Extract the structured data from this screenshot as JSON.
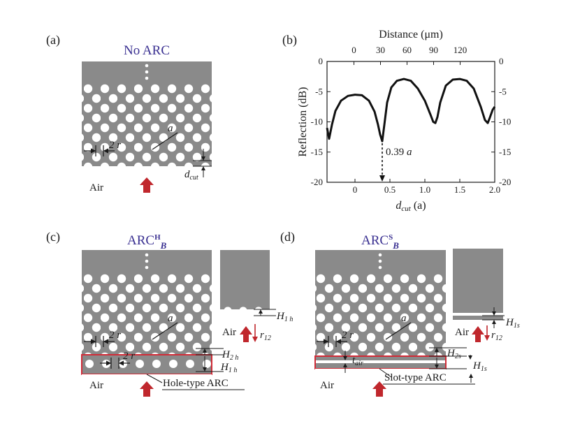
{
  "panels": {
    "a": {
      "label": "(a)",
      "title": "No ARC",
      "medium": "Air",
      "dim_r": "2 r",
      "dim_a": "a",
      "dim_dcut": "d",
      "dim_dcut_sub": "cut"
    },
    "b": {
      "label": "(b)"
    },
    "c": {
      "label": "(c)",
      "title_main": "ARC",
      "title_sup": "H",
      "title_sub": "B",
      "medium": "Air",
      "dim_r": "2 r",
      "dim_r2": "2 r",
      "dim_a": "a",
      "h2": "H",
      "h2_sub": "2 h",
      "h1": "H",
      "h1_sub": "1 h",
      "callout": "Hole-type ARC",
      "inset_medium": "Air",
      "inset_h": "H",
      "inset_h_sub": "1 h",
      "inset_r": "r",
      "inset_r_sub": "12"
    },
    "d": {
      "label": "(d)",
      "title_main": "ARC",
      "title_sup": "S",
      "title_sub": "B",
      "medium": "Air",
      "dim_r": "2 r",
      "dim_a": "a",
      "tair": "t",
      "tair_sub": "air",
      "h2": "H",
      "h2_sub": "2s",
      "h1": "H",
      "h1_sub": "1s",
      "callout": "Slot-type ARC",
      "inset_medium": "Air",
      "inset_h": "H",
      "inset_h_sub": "1s",
      "inset_r": "r",
      "inset_r_sub": "12"
    }
  },
  "colors": {
    "slab": "#8a8a8a",
    "hole": "#ffffff",
    "title": "#3a3091",
    "arrow": "#c0272d",
    "box": "#d12b37"
  },
  "chart_data": {
    "type": "line",
    "xlabel": "d",
    "xlabel_sub": "cut",
    "xlabel_unit": "(a)",
    "ylabel": "Reflection (dB)",
    "top_label": "Distance (μm)",
    "xlim": [
      -0.4,
      2.0
    ],
    "ylim": [
      -20,
      0
    ],
    "xticks": [
      "0",
      "0.5",
      "1.0",
      "1.5",
      "2.0"
    ],
    "xtick_values": [
      0,
      0.5,
      1.0,
      1.5,
      2.0
    ],
    "top_ticks": [
      "0",
      "30",
      "60",
      "90",
      "120"
    ],
    "top_tick_values": [
      -0.015,
      0.365,
      0.745,
      1.125,
      1.505
    ],
    "yticks": [
      "0",
      "-5",
      "-10",
      "-15",
      "-20"
    ],
    "ytick_values": [
      0,
      -5,
      -10,
      -15,
      -20
    ],
    "annotation": "0.39 a",
    "annotation_x": 0.39,
    "series": [
      {
        "x": [
          -0.4,
          -0.37,
          -0.33,
          -0.28,
          -0.2,
          -0.1,
          0.0,
          0.1,
          0.2,
          0.28,
          0.33,
          0.36,
          0.39,
          0.42,
          0.46,
          0.52,
          0.6,
          0.7,
          0.8,
          0.9,
          1.0,
          1.08,
          1.12,
          1.15,
          1.18,
          1.22,
          1.3,
          1.4,
          1.5,
          1.6,
          1.7,
          1.8,
          1.86,
          1.9,
          1.93,
          1.97,
          2.0
        ],
        "y": [
          -11.0,
          -12.8,
          -10.5,
          -8.2,
          -6.5,
          -5.7,
          -5.5,
          -5.6,
          -6.5,
          -8.3,
          -10.5,
          -12.1,
          -13.2,
          -10.5,
          -6.8,
          -4.3,
          -3.2,
          -2.9,
          -3.2,
          -4.5,
          -6.5,
          -8.8,
          -10.0,
          -10.2,
          -9.2,
          -6.8,
          -4.0,
          -3.0,
          -2.9,
          -3.2,
          -4.5,
          -7.5,
          -9.7,
          -10.2,
          -9.3,
          -8.0,
          -7.5
        ]
      }
    ]
  }
}
